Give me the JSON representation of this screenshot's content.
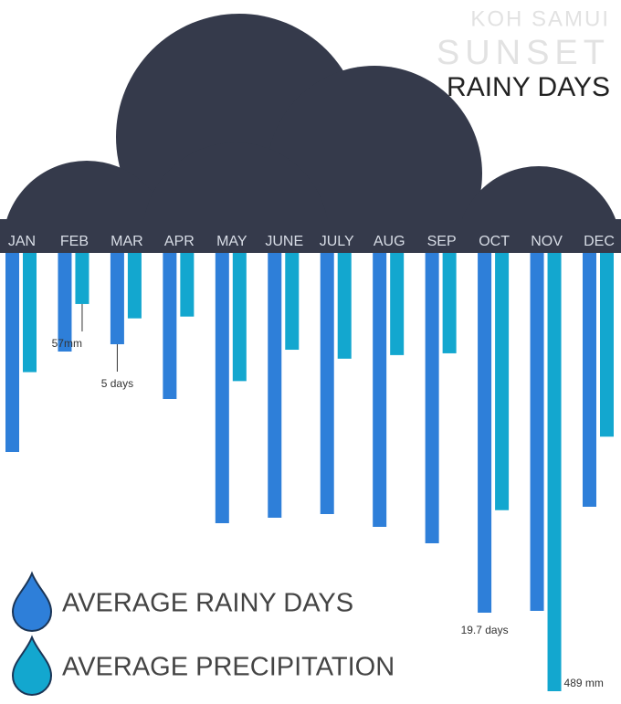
{
  "chart_data": {
    "type": "bar",
    "title": "RAINY DAYS",
    "subtitle": [
      "KOH SAMUI",
      "SUNSET"
    ],
    "categories": [
      "JAN",
      "FEB",
      "MAR",
      "APR",
      "MAY",
      "JUNE",
      "JULY",
      "AUG",
      "SEP",
      "OCT",
      "NOV",
      "DEC"
    ],
    "series": [
      {
        "name": "AVERAGE RAINY DAYS",
        "color": "#2e7fd9",
        "values": [
          10.9,
          5.4,
          5,
          8,
          14.8,
          14.5,
          14.3,
          15,
          15.9,
          19.7,
          19.6,
          13.9
        ],
        "value_labels": [
          null,
          null,
          "5 days",
          null,
          null,
          null,
          null,
          null,
          null,
          "19.7 days",
          null,
          null
        ]
      },
      {
        "name": "AVERAGE PRECIPITATION",
        "color": "#13a7cf",
        "axis": "y2",
        "values": [
          133,
          57,
          73,
          71,
          143,
          108,
          118,
          114,
          112,
          287,
          489,
          205
        ],
        "value_labels": [
          null,
          "57mm",
          null,
          null,
          null,
          null,
          null,
          null,
          null,
          null,
          "489 mm",
          null
        ]
      }
    ],
    "ylim": [
      0,
      24
    ],
    "y2lim": [
      0,
      489
    ]
  }
}
